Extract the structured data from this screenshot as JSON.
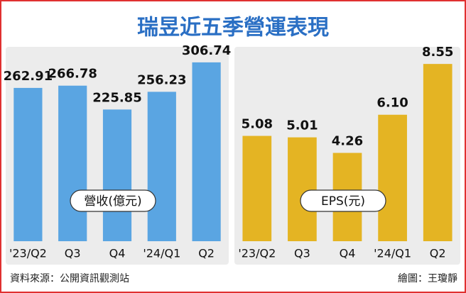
{
  "title": "瑞昱近五季營運表現",
  "chart_data": [
    {
      "type": "bar",
      "title": "營收(億元)",
      "categories": [
        "'23/Q2",
        "Q3",
        "Q4",
        "'24/Q1",
        "Q2"
      ],
      "values": [
        262.91,
        266.78,
        225.85,
        256.23,
        306.74
      ],
      "color": "#5aa5e2",
      "ylim": [
        0,
        320
      ]
    },
    {
      "type": "bar",
      "title": "EPS(元)",
      "categories": [
        "'23/Q2",
        "Q3",
        "Q4",
        "'24/Q1",
        "Q2"
      ],
      "values": [
        5.08,
        5.01,
        4.26,
        6.1,
        8.55
      ],
      "value_labels": [
        "5.08",
        "5.01",
        "4.26",
        "6.10",
        "8.55"
      ],
      "color": "#e4b423",
      "ylim": [
        0,
        9
      ]
    }
  ],
  "source": "資料來源：公開資訊觀測站",
  "credit": "繪圖：王瓊靜"
}
